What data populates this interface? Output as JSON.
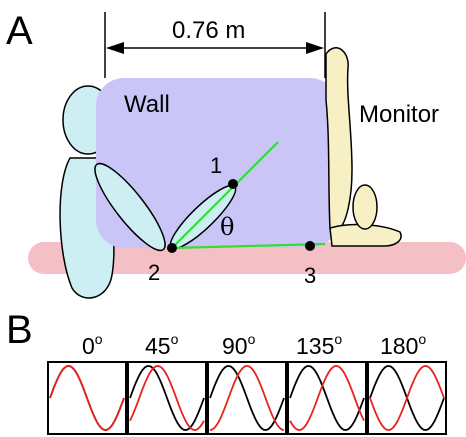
{
  "panel_a": {
    "letter": "A",
    "dimension_label": "0.76 m",
    "wall_label": "Wall",
    "monitor_label": "Monitor",
    "angle_symbol": "θ",
    "points": [
      "1",
      "2",
      "3"
    ]
  },
  "panel_b": {
    "letter": "B",
    "degree_mark": "o",
    "angles": [
      "0",
      "45",
      "90",
      "135",
      "180"
    ],
    "phase_shift_deg": [
      0,
      45,
      90,
      135,
      180
    ]
  },
  "colors": {
    "wall": "#c9c6f7",
    "floor": "#f4c0c6",
    "person_left": "#cdeff4",
    "person_right": "#f7f0c4",
    "ray": "#33dd33",
    "wave_reference": "#000000",
    "wave_shifted": "#e8231f"
  }
}
